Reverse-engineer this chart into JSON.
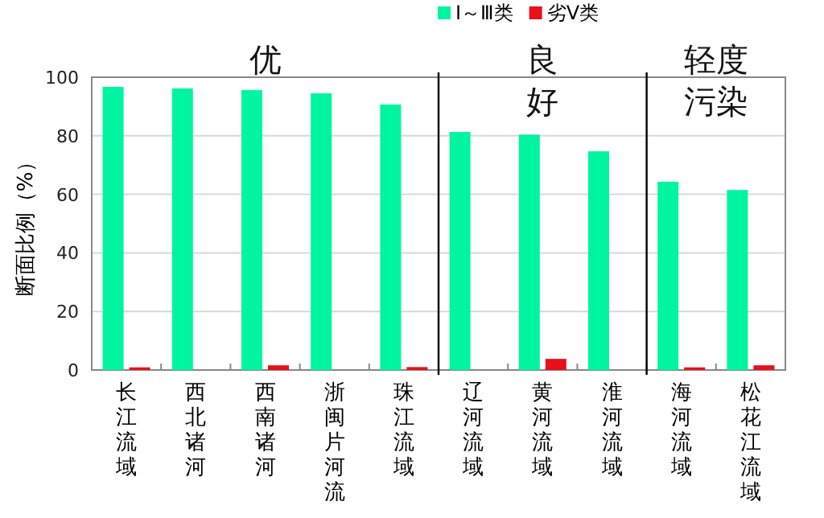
{
  "chart_data": {
    "type": "bar",
    "ylabel": "断面比例（%）",
    "categories": [
      "长江流域",
      "西北诸河",
      "西南诸河",
      "浙闽片河流",
      "珠江流域",
      "辽河流域",
      "黄河流域",
      "淮河流域",
      "海河流域",
      "松花江流域"
    ],
    "series": [
      {
        "name": "Ⅰ～Ⅲ类",
        "color": "#00f5a0",
        "values": [
          96.7,
          96.2,
          95.6,
          94.5,
          90.7,
          81.3,
          80.4,
          74.7,
          64.3,
          61.5
        ]
      },
      {
        "name": "劣Ⅴ类",
        "color": "#e8101a",
        "values": [
          0.9,
          0,
          1.6,
          0,
          1.0,
          0,
          3.8,
          0,
          0.9,
          1.6
        ]
      }
    ],
    "ylim": [
      0,
      100
    ],
    "yticks": [
      0,
      20,
      40,
      60,
      80,
      100
    ],
    "grid": "y",
    "legend": "top right",
    "annotations": [
      "优",
      "良好",
      "轻度污染"
    ]
  }
}
